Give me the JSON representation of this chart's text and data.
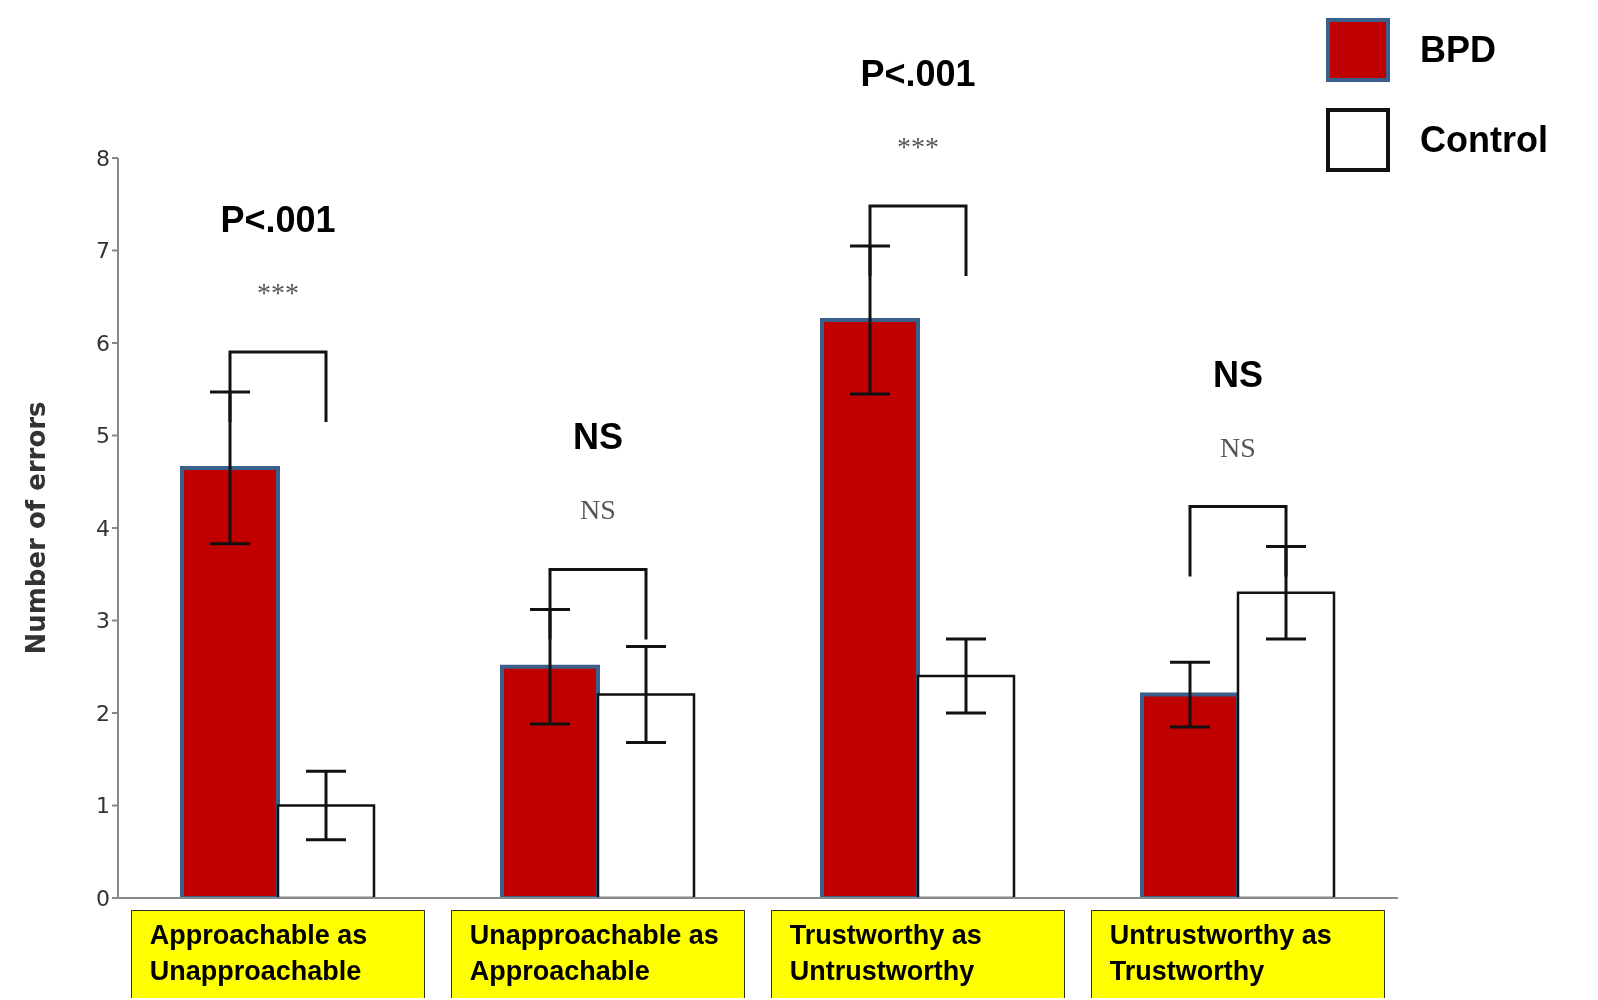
{
  "chart_data": {
    "type": "bar",
    "ylabel": "Number of errors",
    "categories": [
      "Approachable as Unapproachable",
      "Unapproachable as Approachable",
      "Trustworthy as Untrustworthy",
      "Untrustworthy as Trustworthy"
    ],
    "series": [
      {
        "name": "BPD",
        "color": "#c00000",
        "values": [
          4.65,
          2.5,
          6.25,
          2.2
        ],
        "errors": [
          0.82,
          0.62,
          0.8,
          0.35
        ]
      },
      {
        "name": "Control",
        "color": "#ffffff",
        "values": [
          1.0,
          2.2,
          2.4,
          3.3
        ],
        "errors": [
          0.37,
          0.52,
          0.4,
          0.5
        ]
      }
    ],
    "ylim": [
      0,
      8
    ],
    "yticks": [
      0,
      1,
      2,
      3,
      4,
      5,
      6,
      7,
      8
    ],
    "grid": false,
    "legend": "top right",
    "annotations": [
      "P<.001",
      "***",
      "NS",
      "NS",
      "P<.001",
      "***",
      "NS",
      "NS"
    ]
  }
}
